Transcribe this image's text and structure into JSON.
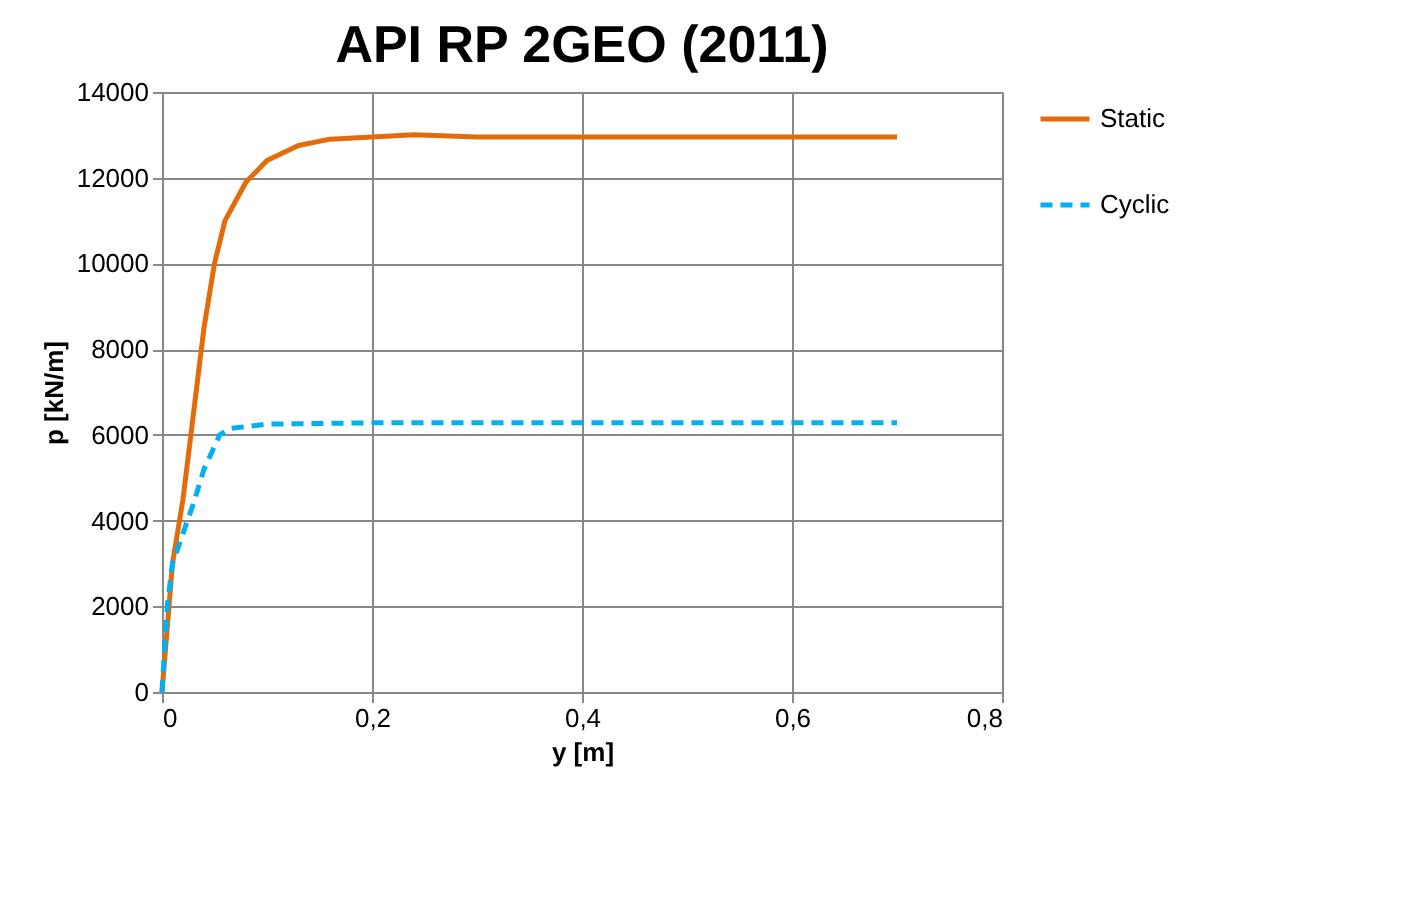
{
  "chart_data": {
    "type": "line",
    "title": "API RP 2GEO (2011)",
    "xlabel": "y [m]",
    "ylabel": "p [kN/m]",
    "xlim": [
      0,
      0.8
    ],
    "xticks": [
      0,
      {
        "value": 0.2,
        "label": "0,2"
      },
      {
        "value": 0.4,
        "label": "0,4"
      },
      {
        "value": 0.6,
        "label": "0,6"
      },
      {
        "value": 0.8,
        "label": "0,8"
      }
    ],
    "ylim": [
      0,
      14000
    ],
    "yticks": [
      0,
      2000,
      4000,
      6000,
      8000,
      10000,
      12000,
      14000
    ],
    "grid": true,
    "legend": "right",
    "series": [
      {
        "name": "Static",
        "color": "#e36c0a",
        "line_style": "solid",
        "x": [
          0,
          0.005,
          0.01,
          0.02,
          0.03,
          0.04,
          0.05,
          0.06,
          0.08,
          0.1,
          0.13,
          0.16,
          0.2,
          0.24,
          0.3,
          0.4,
          0.7
        ],
        "values": [
          0,
          1500,
          3000,
          4500,
          6500,
          8500,
          10000,
          11000,
          11900,
          12400,
          12750,
          12900,
          12950,
          13000,
          12950,
          12950,
          12950
        ]
      },
      {
        "name": "Cyclic",
        "color": "#00b0f0",
        "line_style": "dashed",
        "x": [
          0,
          0.005,
          0.01,
          0.02,
          0.03,
          0.04,
          0.055,
          0.065,
          0.1,
          0.2,
          0.7
        ],
        "values": [
          0,
          2000,
          3000,
          3700,
          4400,
          5200,
          6000,
          6150,
          6250,
          6280,
          6280
        ]
      }
    ]
  }
}
